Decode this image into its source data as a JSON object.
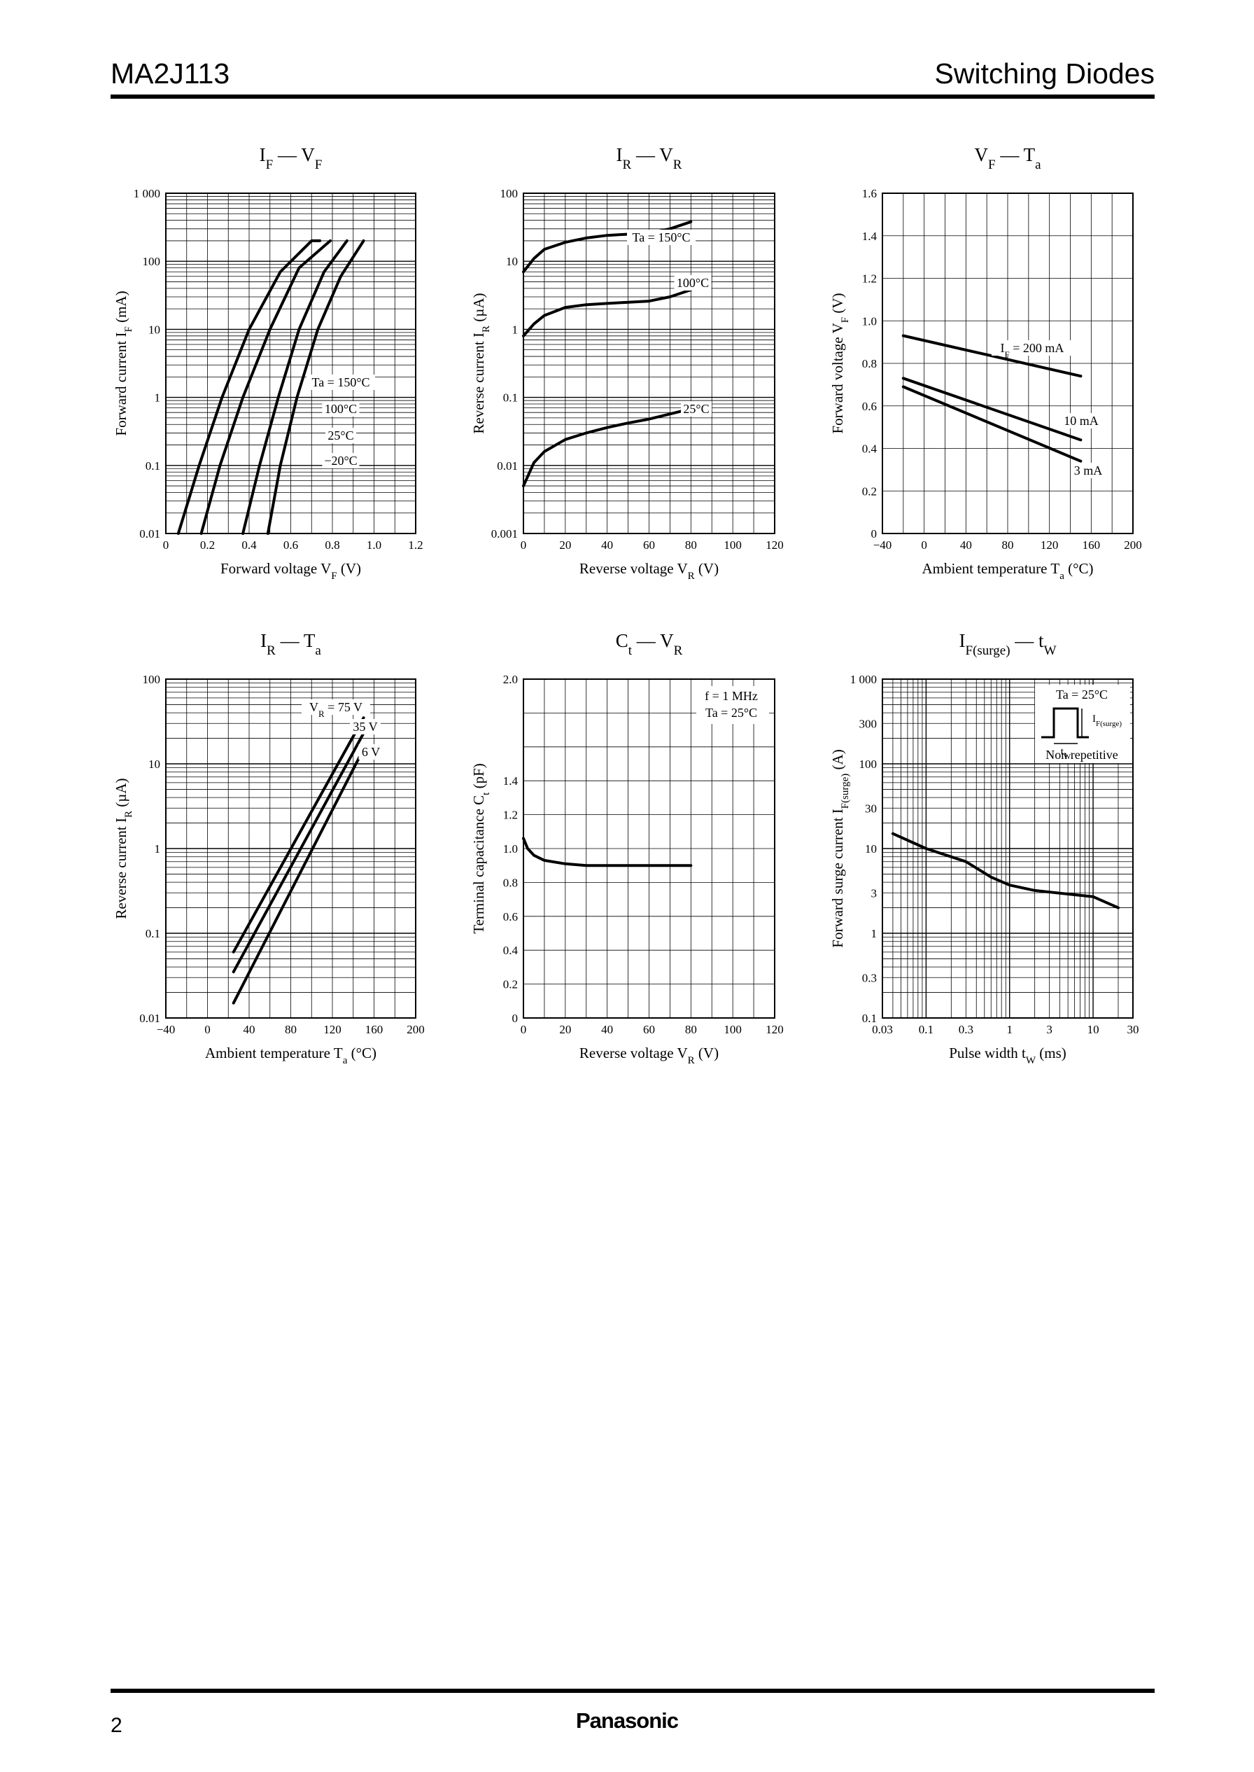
{
  "header": {
    "part_number": "MA2J113",
    "category": "Switching Diodes"
  },
  "footer": {
    "page_number": "2",
    "brand": "Panasonic"
  },
  "chart_data": [
    {
      "type": "line",
      "title": "I_F — V_F",
      "xlabel": "Forward voltage V_F (V)",
      "ylabel": "Forward current I_F (mA)",
      "xlim": [
        0,
        1.2
      ],
      "x_ticks": [
        "0",
        "0.2",
        "0.4",
        "0.6",
        "0.8",
        "1.0",
        "1.2"
      ],
      "ylim": [
        0.01,
        1000
      ],
      "y_scale": "log",
      "y_ticks": [
        "0.01",
        "0.1",
        "1",
        "10",
        "100",
        "1 000"
      ],
      "grid": true,
      "series": [
        {
          "name": "Ta = 150°C",
          "x": [
            0.06,
            0.16,
            0.27,
            0.4,
            0.55,
            0.7,
            0.74
          ],
          "y": [
            0.01,
            0.1,
            1,
            10,
            70,
            200,
            200
          ]
        },
        {
          "name": "100°C",
          "x": [
            0.17,
            0.26,
            0.37,
            0.5,
            0.64,
            0.79
          ],
          "y": [
            0.01,
            0.1,
            1,
            10,
            80,
            200
          ]
        },
        {
          "name": "25°C",
          "x": [
            0.37,
            0.45,
            0.54,
            0.64,
            0.76,
            0.87
          ],
          "y": [
            0.01,
            0.1,
            1,
            10,
            70,
            200
          ]
        },
        {
          "name": "−20°C",
          "x": [
            0.49,
            0.55,
            0.63,
            0.73,
            0.84,
            0.95
          ],
          "y": [
            0.01,
            0.1,
            1,
            10,
            60,
            200
          ]
        }
      ]
    },
    {
      "type": "line",
      "title": "I_R — V_R",
      "xlabel": "Reverse voltage V_R (V)",
      "ylabel": "Reverse current I_R (µA)",
      "xlim": [
        0,
        120
      ],
      "x_ticks": [
        "0",
        "20",
        "40",
        "60",
        "80",
        "100",
        "120"
      ],
      "ylim": [
        0.001,
        100
      ],
      "y_scale": "log",
      "y_ticks": [
        "0.001",
        "0.01",
        "0.1",
        "1",
        "10",
        "100"
      ],
      "grid": true,
      "series": [
        {
          "name": "Ta = 150°C",
          "x": [
            0,
            5,
            10,
            20,
            30,
            40,
            50,
            60,
            70,
            80
          ],
          "y": [
            7,
            11,
            15,
            19,
            22,
            24,
            25,
            26,
            30,
            38
          ]
        },
        {
          "name": "100°C",
          "x": [
            0,
            5,
            10,
            20,
            30,
            40,
            50,
            60,
            70,
            80
          ],
          "y": [
            0.8,
            1.2,
            1.6,
            2.1,
            2.3,
            2.4,
            2.5,
            2.6,
            3.0,
            3.8
          ]
        },
        {
          "name": "25°C",
          "x": [
            0,
            5,
            10,
            20,
            30,
            40,
            50,
            60,
            70,
            80
          ],
          "y": [
            0.005,
            0.011,
            0.016,
            0.024,
            0.03,
            0.036,
            0.042,
            0.048,
            0.057,
            0.068
          ]
        }
      ]
    },
    {
      "type": "line",
      "title": "V_F — T_a",
      "xlabel": "Ambient temperature T_a (°C)",
      "ylabel": "Forward voltage V_F (V)",
      "xlim": [
        -40,
        200
      ],
      "x_ticks": [
        "−40",
        "0",
        "40",
        "80",
        "120",
        "160",
        "200"
      ],
      "ylim": [
        0,
        1.6
      ],
      "y_ticks": [
        "0",
        "0.2",
        "0.4",
        "0.6",
        "0.8",
        "1.0",
        "1.2",
        "1.4",
        "1.6"
      ],
      "grid": true,
      "series": [
        {
          "name": "I_F = 200 mA",
          "x": [
            -20,
            150
          ],
          "y": [
            0.93,
            0.74
          ]
        },
        {
          "name": "10 mA",
          "x": [
            -20,
            150
          ],
          "y": [
            0.73,
            0.44
          ]
        },
        {
          "name": "3 mA",
          "x": [
            -20,
            150
          ],
          "y": [
            0.69,
            0.34
          ]
        }
      ]
    },
    {
      "type": "line",
      "title": "I_R — T_a",
      "xlabel": "Ambient temperature T_a (°C)",
      "ylabel": "Reverse current I_R (µA)",
      "xlim": [
        -40,
        200
      ],
      "x_ticks": [
        "−40",
        "0",
        "40",
        "80",
        "120",
        "160",
        "200"
      ],
      "ylim": [
        0.01,
        100
      ],
      "y_scale": "log",
      "y_ticks": [
        "0.01",
        "0.1",
        "1",
        "10",
        "100"
      ],
      "grid": true,
      "series": [
        {
          "name": "V_R = 75 V",
          "x": [
            25,
            150
          ],
          "y": [
            0.06,
            35
          ]
        },
        {
          "name": "35 V",
          "x": [
            25,
            150
          ],
          "y": [
            0.035,
            23
          ]
        },
        {
          "name": "6 V",
          "x": [
            25,
            150
          ],
          "y": [
            0.015,
            15
          ]
        }
      ]
    },
    {
      "type": "line",
      "title": "C_t — V_R",
      "xlabel": "Reverse voltage V_R (V)",
      "ylabel": "Terminal capacitance C_t (pF)",
      "xlim": [
        0,
        120
      ],
      "x_ticks": [
        "0",
        "20",
        "40",
        "60",
        "80",
        "100",
        "120"
      ],
      "ylim": [
        0,
        2.0
      ],
      "y_ticks": [
        "0",
        "0.2",
        "0.4",
        "0.6",
        "0.8",
        "1.0",
        "1.2",
        "1.4",
        "2.0"
      ],
      "grid": true,
      "annotations": [
        "f = 1 MHz",
        "Ta = 25°C"
      ],
      "series": [
        {
          "name": "",
          "x": [
            0,
            2,
            5,
            10,
            20,
            30,
            40,
            60,
            80
          ],
          "y": [
            1.06,
            1.0,
            0.96,
            0.93,
            0.91,
            0.9,
            0.9,
            0.9,
            0.9
          ]
        }
      ]
    },
    {
      "type": "line",
      "title": "I_F(surge) — t_W",
      "xlabel": "Pulse width t_W (ms)",
      "ylabel": "Forward surge current I_F(surge) (A)",
      "xlim": [
        0.03,
        30
      ],
      "x_scale": "log",
      "x_ticks": [
        "0.03",
        "0.1",
        "0.3",
        "1",
        "3",
        "10",
        "30"
      ],
      "ylim": [
        0.1,
        1000
      ],
      "y_scale": "log",
      "y_ticks": [
        "0.1",
        "0.3",
        "1",
        "3",
        "10",
        "30",
        "100",
        "300",
        "1 000"
      ],
      "grid": true,
      "annotations": [
        "Ta = 25°C",
        "Non repetitive",
        "I_F(surge)",
        "t_W"
      ],
      "series": [
        {
          "name": "",
          "x": [
            0.04,
            0.1,
            0.3,
            0.6,
            1,
            2,
            5,
            10,
            20
          ],
          "y": [
            15,
            10,
            7,
            4.6,
            3.7,
            3.2,
            2.9,
            2.7,
            2.0
          ]
        }
      ]
    }
  ]
}
